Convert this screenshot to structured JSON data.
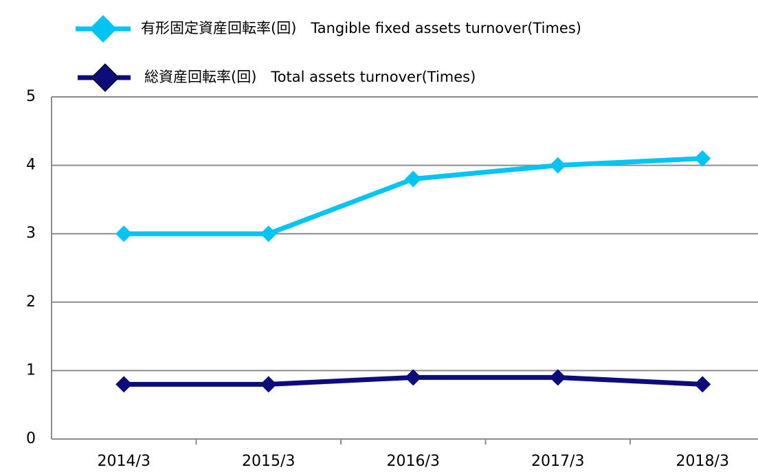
{
  "chart_data": {
    "type": "line",
    "categories": [
      "2014/3",
      "2015/3",
      "2016/3",
      "2017/3",
      "2018/3"
    ],
    "series": [
      {
        "name": "有形固定資産回転率(回)　Tangible fixed assets turnover(Times)",
        "color": "#00c4f4",
        "values": [
          3,
          3,
          3.8,
          4,
          4.1
        ]
      },
      {
        "name": "総資産回転率(回)　Total assets turnover(Times)",
        "color": "#0c0c7a",
        "values": [
          0.8,
          0.8,
          0.9,
          0.9,
          0.8
        ]
      }
    ],
    "ylim": [
      0,
      5
    ],
    "yticks": [
      0,
      1,
      2,
      3,
      4,
      5
    ],
    "grid": true,
    "legend": "top"
  }
}
